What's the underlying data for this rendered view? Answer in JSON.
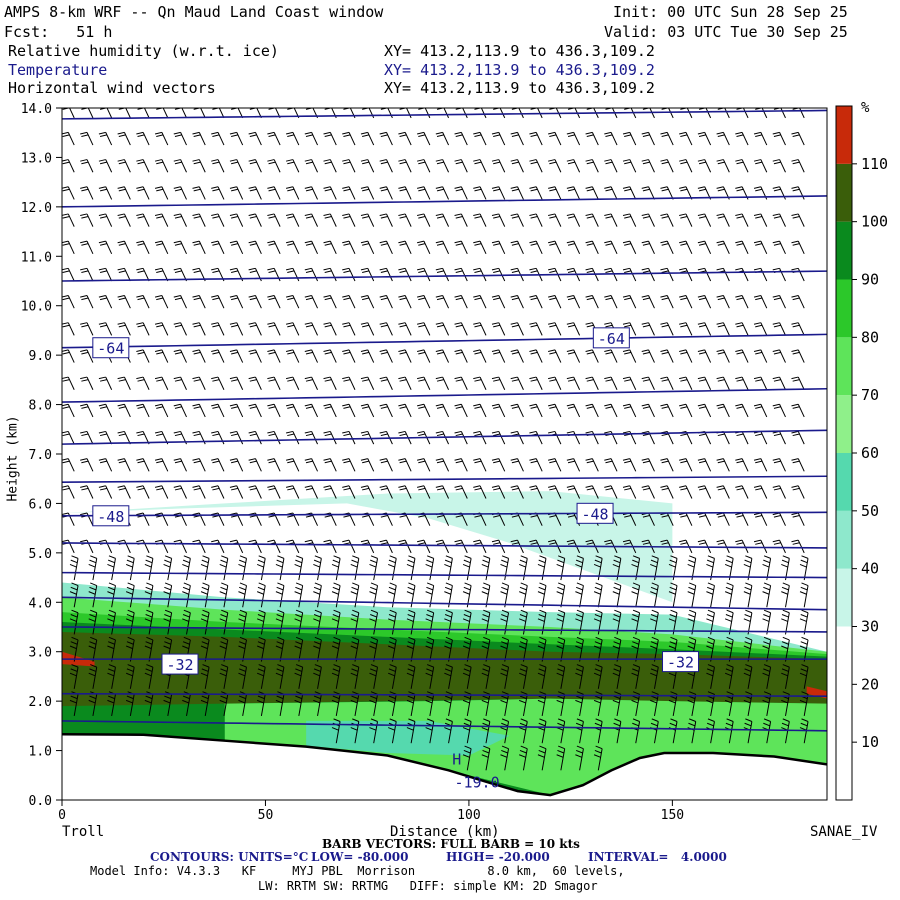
{
  "header": {
    "title": "AMPS 8-km WRF -- Qn Maud Land Coast window",
    "init": "Init: 00 UTC Sun 28 Sep 25",
    "fcst": "Fcst:   51 h",
    "valid": "Valid: 03 UTC Tue 30 Sep 25",
    "fields": [
      {
        "label": "Relative humidity (w.r.t. ice)",
        "xy": "XY= 413.2,113.9 to 436.3,109.2"
      },
      {
        "label": "Temperature",
        "xy": "XY= 413.2,113.9 to 436.3,109.2"
      },
      {
        "label": "Horizontal wind vectors",
        "xy": "XY= 413.2,113.9 to 436.3,109.2"
      }
    ]
  },
  "footer": {
    "start_label": "Troll",
    "end_label": "SANAE_IV",
    "barb_line": "BARB VECTORS: FULL BARB = 10 kts",
    "contour_line": {
      "units": "CONTOURS: UNITS=°C",
      "low": "LOW= -80.000",
      "high": "HIGH= -20.000",
      "interval": "INTERVAL=   4.0000"
    },
    "model_line": "Model Info: V4.3.3   KF     MYJ PBL  Morrison          8.0 km,  60 levels,",
    "physics_line": "LW: RRTM SW: RRTMG   DIFF: simple KM: 2D Smagor"
  },
  "chart_data": {
    "type": "cross-section",
    "xlabel": "Distance (km)",
    "ylabel": "Height (km)",
    "xlim": [
      0,
      188
    ],
    "ylim": [
      0,
      14
    ],
    "xticks": [
      0,
      50,
      100,
      150
    ],
    "yticks": [
      "0.0",
      "1.0",
      "2.0",
      "3.0",
      "4.0",
      "5.0",
      "6.0",
      "7.0",
      "8.0",
      "9.0",
      "10.0",
      "11.0",
      "12.0",
      "13.0",
      "14.0"
    ],
    "terrain": [
      [
        0,
        1.33
      ],
      [
        20,
        1.32
      ],
      [
        40,
        1.2
      ],
      [
        60,
        1.08
      ],
      [
        80,
        0.9
      ],
      [
        95,
        0.6
      ],
      [
        105,
        0.35
      ],
      [
        112,
        0.18
      ],
      [
        120,
        0.1
      ],
      [
        128,
        0.3
      ],
      [
        135,
        0.6
      ],
      [
        142,
        0.85
      ],
      [
        148,
        0.95
      ],
      [
        160,
        0.95
      ],
      [
        175,
        0.88
      ],
      [
        188,
        0.72
      ]
    ],
    "isotherms": [
      {
        "y0": 13.78,
        "y1": 13.95
      },
      {
        "y0": 12.0,
        "y1": 12.22
      },
      {
        "y0": 10.5,
        "y1": 10.7
      },
      {
        "y0": 9.15,
        "y1": 9.42
      },
      {
        "y0": 8.05,
        "y1": 8.32
      },
      {
        "y0": 7.2,
        "y1": 7.48
      },
      {
        "y0": 6.43,
        "y1": 6.55
      },
      {
        "y0": 5.75,
        "y1": 5.82
      },
      {
        "y0": 5.2,
        "y1": 5.1
      },
      {
        "y0": 4.6,
        "y1": 4.5
      },
      {
        "y0": 4.1,
        "y1": 3.85
      },
      {
        "y0": 3.5,
        "y1": 3.4
      },
      {
        "y0": 2.85,
        "y1": 2.85
      },
      {
        "y0": 2.15,
        "y1": 2.1
      },
      {
        "y0": 1.6,
        "y1": 1.4
      }
    ],
    "temp_labels": [
      {
        "text": "-64",
        "x": 12,
        "y": 9.15
      },
      {
        "text": "-64",
        "x": 135,
        "y": 9.35
      },
      {
        "text": "-48",
        "x": 12,
        "y": 5.75
      },
      {
        "text": "-48",
        "x": 131,
        "y": 5.8
      },
      {
        "text": "-32",
        "x": 29,
        "y": 2.75
      },
      {
        "text": "-32",
        "x": 152,
        "y": 2.8
      }
    ],
    "low_label": {
      "text": "-19.0",
      "x": 102,
      "y": 0.25
    },
    "hi_marker": {
      "text": "H",
      "x": 97,
      "y": 0.72
    },
    "colorbar": {
      "unit": "%",
      "ticks": [
        10,
        20,
        30,
        40,
        50,
        60,
        70,
        80,
        90,
        100,
        110
      ],
      "bins": [
        {
          "from": 0,
          "to": 30,
          "color": "#ffffff"
        },
        {
          "from": 30,
          "to": 40,
          "color": "#c8f5e8"
        },
        {
          "from": 40,
          "to": 50,
          "color": "#8ee8cc"
        },
        {
          "from": 50,
          "to": 60,
          "color": "#55d9ae"
        },
        {
          "from": 60,
          "to": 70,
          "color": "#8ff08a"
        },
        {
          "from": 70,
          "to": 80,
          "color": "#5ee45a"
        },
        {
          "from": 80,
          "to": 90,
          "color": "#2cc82a"
        },
        {
          "from": 90,
          "to": 100,
          "color": "#0a8a1e"
        },
        {
          "from": 100,
          "to": 110,
          "color": "#3a5e0a"
        },
        {
          "from": 110,
          "to": 120,
          "color": "#c82a0a"
        }
      ]
    },
    "rh_layers": [
      {
        "color": "#c8f5e8",
        "top": [
          [
            0,
            5.8
          ],
          [
            40,
            6.0
          ],
          [
            80,
            6.2
          ],
          [
            120,
            6.25
          ],
          [
            150,
            6.0
          ],
          [
            150,
            4.0
          ],
          [
            130,
            4.6
          ],
          [
            110,
            5.2
          ],
          [
            90,
            5.7
          ],
          [
            70,
            6.0
          ],
          [
            30,
            5.9
          ],
          [
            0,
            5.8
          ]
        ]
      },
      {
        "color": "#8ee8cc",
        "top": [
          [
            0,
            4.4
          ],
          [
            40,
            4.1
          ],
          [
            80,
            3.9
          ],
          [
            120,
            3.8
          ],
          [
            150,
            3.75
          ],
          [
            188,
            3.0
          ]
        ]
      },
      {
        "color": "#5ee45a",
        "top": [
          [
            0,
            4.1
          ],
          [
            40,
            3.85
          ],
          [
            80,
            3.65
          ],
          [
            120,
            3.5
          ],
          [
            150,
            3.35
          ],
          [
            188,
            3.0
          ]
        ]
      },
      {
        "color": "#2cc82a",
        "top": [
          [
            0,
            3.8
          ],
          [
            40,
            3.6
          ],
          [
            80,
            3.45
          ],
          [
            120,
            3.3
          ],
          [
            150,
            3.2
          ],
          [
            188,
            2.95
          ]
        ]
      },
      {
        "color": "#0a8a1e",
        "top": [
          [
            0,
            3.6
          ],
          [
            40,
            3.45
          ],
          [
            80,
            3.3
          ],
          [
            120,
            3.15
          ],
          [
            150,
            3.05
          ],
          [
            188,
            2.9
          ]
        ]
      },
      {
        "color": "#3a5e0a",
        "top": [
          [
            0,
            3.4
          ],
          [
            40,
            3.3
          ],
          [
            80,
            3.15
          ],
          [
            120,
            3.0
          ],
          [
            150,
            2.95
          ],
          [
            188,
            2.85
          ]
        ],
        "bottom": [
          [
            0,
            1.9
          ],
          [
            40,
            1.95
          ],
          [
            80,
            2.0
          ],
          [
            120,
            2.05
          ],
          [
            150,
            2.0
          ],
          [
            188,
            1.95
          ]
        ]
      }
    ],
    "rh_red_patches": [
      {
        "color": "#c82a0a",
        "pts": [
          [
            0,
            3.0
          ],
          [
            8,
            2.8
          ],
          [
            8,
            2.7
          ],
          [
            0,
            2.75
          ]
        ]
      },
      {
        "color": "#c82a0a",
        "pts": [
          [
            183,
            2.3
          ],
          [
            188,
            2.2
          ],
          [
            188,
            2.05
          ],
          [
            183,
            2.15
          ]
        ]
      }
    ]
  }
}
